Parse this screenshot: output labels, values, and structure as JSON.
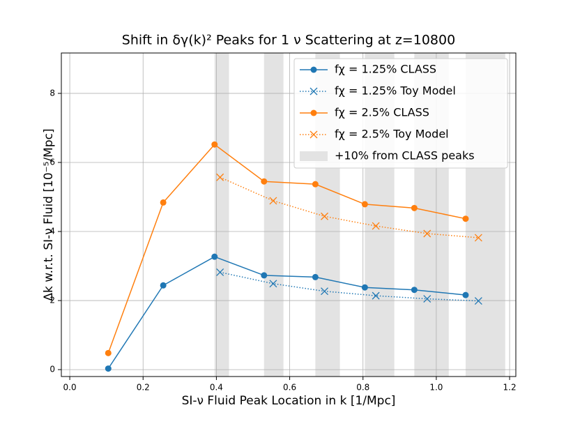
{
  "chart_data": {
    "type": "line",
    "title": "Shift in δγ(k)² Peaks for 1 ν Scattering at z=10800",
    "x_label": "SI-ν Fluid Peak Location in k [1/Mpc]",
    "y_label": "Δk w.r.t. SI-ν Fluid [10⁻⁵/Mpc]",
    "xlim": [
      -0.023,
      1.217
    ],
    "ylim": [
      -0.2,
      9.17
    ],
    "xticks": [
      {
        "value": 0.0,
        "label": "0.0"
      },
      0.2,
      0.4,
      0.6,
      0.8,
      {
        "value": 1.0,
        "label": "1.0"
      },
      1.2
    ],
    "yticks": [
      0,
      2,
      4,
      6,
      8
    ],
    "grid": true,
    "legend": "upper right",
    "series": [
      {
        "name": "fχ = 1.25% CLASS",
        "color": "#1f77b4",
        "marker": "circle",
        "linestyle": "solid",
        "x": [
          0.105,
          0.255,
          0.395,
          0.53,
          0.67,
          0.805,
          0.94,
          1.08
        ],
        "values": [
          0.03,
          2.44,
          3.27,
          2.73,
          2.68,
          2.38,
          2.31,
          2.16
        ]
      },
      {
        "name": "fχ = 1.25% Toy Model",
        "color": "#1f77b4",
        "marker": "x",
        "linestyle": "dotted",
        "x": [
          0.41,
          0.555,
          0.695,
          0.835,
          0.975,
          1.115
        ],
        "values": [
          2.82,
          2.49,
          2.27,
          2.14,
          2.05,
          1.99
        ]
      },
      {
        "name": "fχ = 2.5% CLASS",
        "color": "#ff7f0e",
        "marker": "circle",
        "linestyle": "solid",
        "x": [
          0.105,
          0.255,
          0.395,
          0.53,
          0.67,
          0.805,
          0.94,
          1.08
        ],
        "values": [
          0.48,
          4.84,
          6.52,
          5.45,
          5.37,
          4.79,
          4.68,
          4.37
        ]
      },
      {
        "name": "fχ = 2.5% Toy Model",
        "color": "#ff7f0e",
        "marker": "x",
        "linestyle": "dotted",
        "x": [
          0.41,
          0.555,
          0.695,
          0.835,
          0.975,
          1.115
        ],
        "values": [
          5.57,
          4.89,
          4.44,
          4.16,
          3.94,
          3.82
        ]
      }
    ],
    "bands": {
      "name": "+10% from CLASS peaks",
      "color": "#e3e3e3",
      "ranges": [
        [
          0.395,
          0.4345
        ],
        [
          0.53,
          0.583
        ],
        [
          0.67,
          0.737
        ],
        [
          0.805,
          0.8855
        ],
        [
          0.94,
          1.034
        ],
        [
          1.08,
          1.188
        ]
      ]
    }
  }
}
